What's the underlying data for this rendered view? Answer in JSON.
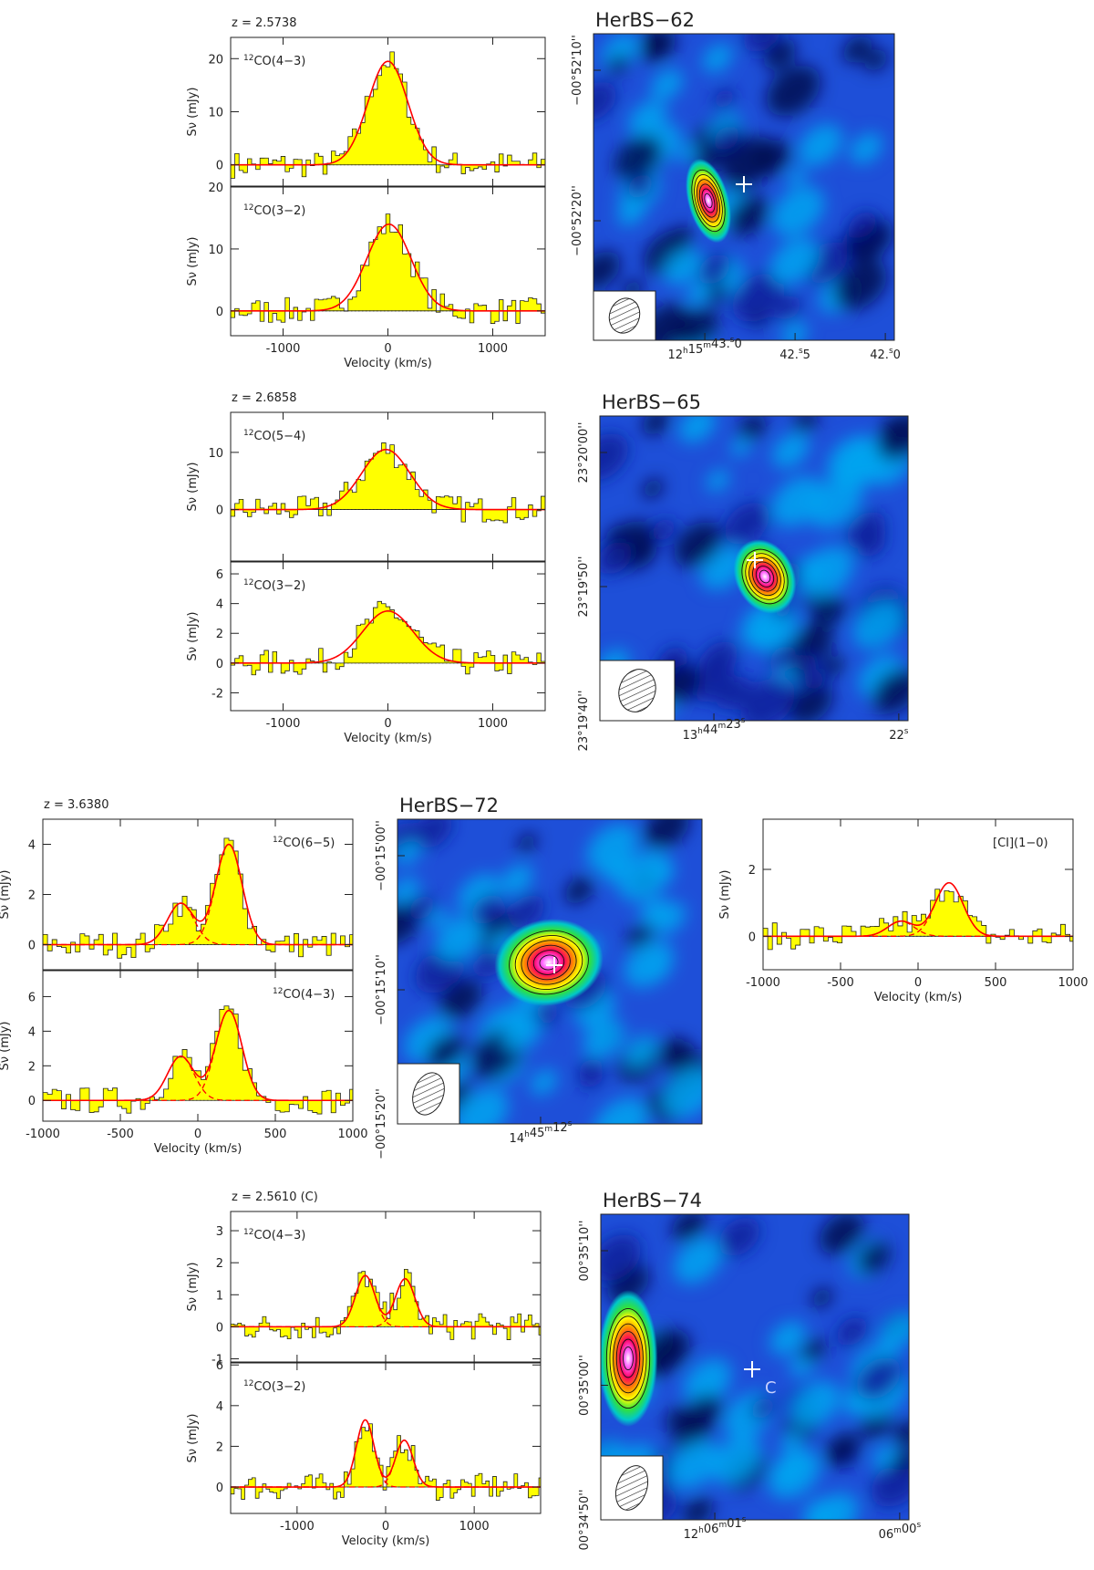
{
  "chart_data": [
    {
      "type": "spectrum_group",
      "source": "HerBS-62",
      "redshift_label": "z = 2.5738",
      "xlabel": "Velocity (km/s)",
      "ylabel": "Sν (mJy)",
      "xlim": [
        -1500,
        1500
      ],
      "x_ticks": [
        -1000,
        0,
        1000
      ],
      "panels": [
        {
          "line": "12CO(4−3)",
          "line_iso": "12",
          "line_name": "CO(4−3)",
          "ylim": [
            -4,
            24
          ],
          "y_ticks": [
            0,
            10,
            20
          ],
          "line_label_side": "left",
          "fit": [
            {
              "amp": 19.5,
              "mu": 0,
              "sigma": 190
            }
          ],
          "dashed_components": false
        },
        {
          "line": "12CO(3−2)",
          "line_iso": "12",
          "line_name": "CO(3−2)",
          "ylim": [
            -4,
            20
          ],
          "y_ticks": [
            0,
            10,
            20
          ],
          "line_label_side": "left",
          "fit": [
            {
              "amp": 14,
              "mu": 10,
              "sigma": 210
            }
          ],
          "dashed_components": false
        }
      ]
    },
    {
      "type": "spectrum_group",
      "source": "HerBS-65",
      "redshift_label": "z = 2.6858",
      "xlabel": "Velocity (km/s)",
      "ylabel": "Sν (mJy)",
      "xlim": [
        -1500,
        1500
      ],
      "x_ticks": [
        -1000,
        0,
        1000
      ],
      "panels": [
        {
          "line": "12CO(5−4)",
          "line_iso": "12",
          "line_name": "CO(5−4)",
          "ylim": [
            -9,
            17
          ],
          "y_ticks": [
            0,
            10
          ],
          "line_label_side": "left",
          "fit": [
            {
              "amp": 10.5,
              "mu": -20,
              "sigma": 230
            }
          ],
          "dashed_components": false
        },
        {
          "line": "12CO(3−2)",
          "line_iso": "12",
          "line_name": "CO(3−2)",
          "ylim": [
            -3.2,
            6.8
          ],
          "y_ticks": [
            -2,
            0,
            2,
            4,
            6
          ],
          "line_label_side": "left",
          "fit": [
            {
              "amp": 3.5,
              "mu": 0,
              "sigma": 240
            }
          ],
          "dashed_components": false
        }
      ]
    },
    {
      "type": "spectrum_group",
      "source": "HerBS-72",
      "redshift_label": "z = 3.6380",
      "xlabel": "Velocity (km/s)",
      "ylabel": "Sν (mJy)",
      "xlim": [
        -1000,
        1000
      ],
      "x_ticks": [
        -1000,
        -500,
        0,
        500,
        1000
      ],
      "panels": [
        {
          "line": "12CO(6−5)",
          "line_iso": "12",
          "line_name": "CO(6−5)",
          "ylim": [
            -1,
            5
          ],
          "y_ticks": [
            0,
            2,
            4
          ],
          "line_label_side": "right",
          "fit": [
            {
              "amp": 1.65,
              "mu": -110,
              "sigma": 85
            },
            {
              "amp": 4.0,
              "mu": 200,
              "sigma": 85
            }
          ],
          "dashed_components": true
        },
        {
          "line": "12CO(4−3)",
          "line_iso": "12",
          "line_name": "CO(4−3)",
          "ylim": [
            -1.2,
            7.5
          ],
          "y_ticks": [
            0,
            2,
            4,
            6
          ],
          "line_label_side": "right",
          "fit": [
            {
              "amp": 2.55,
              "mu": -110,
              "sigma": 85
            },
            {
              "amp": 5.2,
              "mu": 200,
              "sigma": 85
            }
          ],
          "dashed_components": true
        }
      ]
    },
    {
      "type": "spectrum_group",
      "source": "HerBS-72",
      "redshift_label": "",
      "xlabel": "Velocity (km/s)",
      "ylabel": "Sν (mJy)",
      "xlim": [
        -1000,
        1000
      ],
      "x_ticks": [
        -1000,
        -500,
        0,
        500,
        1000
      ],
      "panels": [
        {
          "line": "[CI](1−0)",
          "line_iso": "",
          "line_name": "[CI](1−0)",
          "ylim": [
            -1,
            3.5
          ],
          "y_ticks": [
            0,
            2
          ],
          "line_label_side": "right",
          "fit": [
            {
              "amp": 0.45,
              "mu": -110,
              "sigma": 85
            },
            {
              "amp": 1.6,
              "mu": 200,
              "sigma": 90
            }
          ],
          "dashed_components": true
        }
      ]
    },
    {
      "type": "spectrum_group",
      "source": "HerBS-74",
      "redshift_label": "z = 2.5610 (C)",
      "xlabel": "Velocity (km/s)",
      "ylabel": "Sν (mJy)",
      "xlim": [
        -1750,
        1750
      ],
      "x_ticks": [
        -1000,
        0,
        1000
      ],
      "panels": [
        {
          "line": "12CO(4−3)",
          "line_iso": "12",
          "line_name": "CO(4−3)",
          "ylim": [
            -1.1,
            3.6
          ],
          "y_ticks": [
            -1,
            0,
            1,
            2,
            3
          ],
          "line_label_side": "left",
          "fit": [
            {
              "amp": 1.6,
              "mu": -230,
              "sigma": 110
            },
            {
              "amp": 1.5,
              "mu": 220,
              "sigma": 110
            }
          ],
          "dashed_components": true
        },
        {
          "line": "12CO(3−2)",
          "line_iso": "12",
          "line_name": "CO(3−2)",
          "ylim": [
            -1.3,
            6.1
          ],
          "y_ticks": [
            0,
            2,
            4,
            6
          ],
          "line_label_side": "left",
          "fit": [
            {
              "amp": 3.3,
              "mu": -230,
              "sigma": 100
            },
            {
              "amp": 2.3,
              "mu": 210,
              "sigma": 100
            }
          ],
          "dashed_components": true
        }
      ]
    },
    {
      "type": "heatmap",
      "title": "HerBS−62",
      "colormap": "blue-cyan-green-yellow-red-magenta-white",
      "contours": true,
      "dec_ticks": [
        "−00°52'10''",
        "−00°52'20''"
      ],
      "ra_ticks": [
        {
          "h": "12",
          "m": "15",
          "s": "43.0",
          "label": "12h15m43.0s"
        },
        {
          "h": "",
          "m": "",
          "s": "42.5",
          "label": "42.5s"
        },
        {
          "h": "",
          "m": "",
          "s": "42.0",
          "label": "42.0s"
        }
      ],
      "labels": []
    },
    {
      "type": "heatmap",
      "title": "HerBS−65",
      "colormap": "blue-cyan-green-yellow-red-magenta-white",
      "contours": true,
      "dec_ticks": [
        "23°20'00''",
        "23°19'50''",
        "23°19'40''"
      ],
      "ra_ticks": [
        {
          "h": "13",
          "m": "44",
          "s": "23",
          "label": "13h44m23s"
        },
        {
          "h": "",
          "m": "",
          "s": "22",
          "label": "22s"
        }
      ],
      "labels": []
    },
    {
      "type": "heatmap",
      "title": "HerBS−72",
      "colormap": "blue-cyan-green-yellow-red-magenta-white",
      "contours": true,
      "dec_ticks": [
        "−00°15'00''",
        "−00°15'10''",
        "−00°15'20''"
      ],
      "ra_ticks": [
        {
          "h": "14",
          "m": "45",
          "s": "12",
          "label": "14h45m12s"
        }
      ],
      "labels": []
    },
    {
      "type": "heatmap",
      "title": "HerBS−74",
      "colormap": "blue-cyan-green-yellow-red-magenta-white",
      "contours": true,
      "dec_ticks": [
        "00°35'10''",
        "00°35'00''",
        "00°34'50''"
      ],
      "ra_ticks": [
        {
          "h": "12",
          "m": "06",
          "s": "01",
          "label": "12h06m01s"
        },
        {
          "h": "",
          "m": "06",
          "s": "00",
          "label": "06m00s"
        }
      ],
      "labels": [
        "C"
      ]
    }
  ]
}
